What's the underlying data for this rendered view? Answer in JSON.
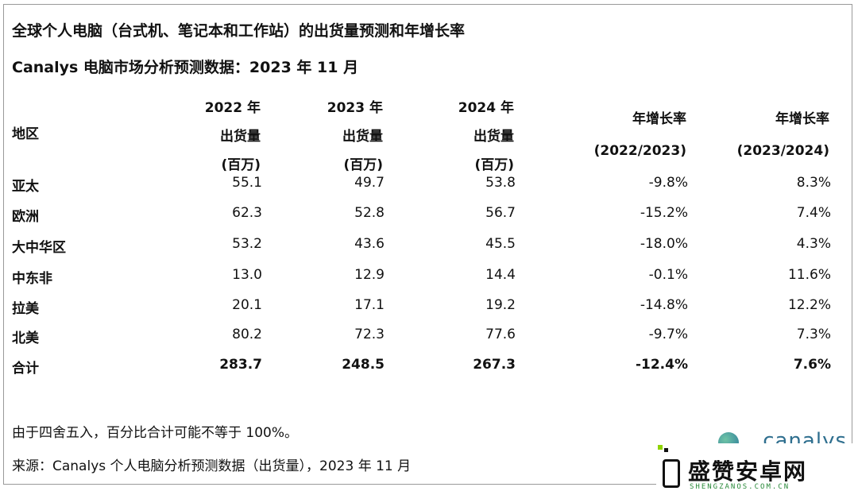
{
  "title": "全球个人电脑（台式机、笔记本和工作站）的出货量预测和年增长率",
  "subtitle": "Canalys 电脑市场分析预测数据：2023 年 11 月",
  "headers": {
    "region": "地区",
    "col1": [
      "2022 年",
      "出货量",
      "(百万)"
    ],
    "col2": [
      "2023 年",
      "出货量",
      "(百万)"
    ],
    "col3": [
      "2024 年",
      "出货量",
      "(百万)"
    ],
    "col4": [
      "年增长率",
      "(2022/2023)"
    ],
    "col5": [
      "年增长率",
      "(2023/2024)"
    ]
  },
  "rows": [
    {
      "region": "亚太",
      "y2022": "55.1",
      "y2023": "49.7",
      "y2024": "53.8",
      "g1": "-9.8%",
      "g2": "8.3%"
    },
    {
      "region": "欧洲",
      "y2022": "62.3",
      "y2023": "52.8",
      "y2024": "56.7",
      "g1": "-15.2%",
      "g2": "7.4%"
    },
    {
      "region": "大中华区",
      "y2022": "53.2",
      "y2023": "43.6",
      "y2024": "45.5",
      "g1": "-18.0%",
      "g2": "4.3%"
    },
    {
      "region": "中东非",
      "y2022": "13.0",
      "y2023": "12.9",
      "y2024": "14.4",
      "g1": "-0.1%",
      "g2": "11.6%"
    },
    {
      "region": "拉美",
      "y2022": "20.1",
      "y2023": "17.1",
      "y2024": "19.2",
      "g1": "-14.8%",
      "g2": "12.2%"
    },
    {
      "region": "北美",
      "y2022": "80.2",
      "y2023": "72.3",
      "y2024": "77.6",
      "g1": "-9.7%",
      "g2": "7.3%"
    }
  ],
  "total": {
    "region": "合计",
    "y2022": "283.7",
    "y2023": "248.5",
    "y2024": "267.3",
    "g1": "-12.4%",
    "g2": "7.6%"
  },
  "notes": {
    "rounding": "由于四舍五入，百分比合计可能不等于 100%。",
    "source": "来源：Canalys 个人电脑分析预测数据（出货量），2023 年 11 月"
  },
  "logo": {
    "canalys": "canalys"
  },
  "watermark": {
    "name": "盛赞安卓网",
    "url": "SHENGZANOS.COM.CN"
  }
}
